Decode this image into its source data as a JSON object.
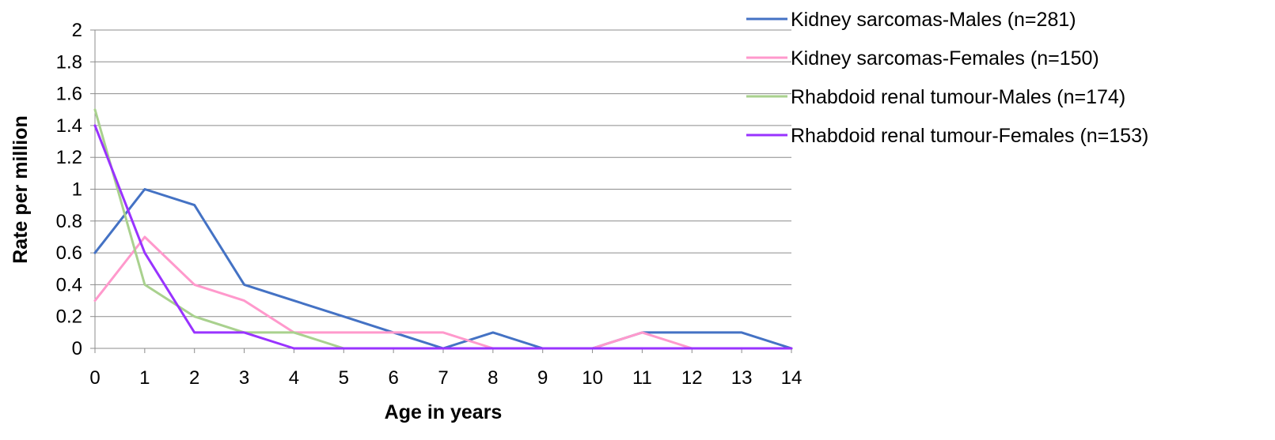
{
  "chart_data": {
    "type": "line",
    "title": "",
    "xlabel": "Age in years",
    "ylabel": "Rate per million",
    "x": [
      0,
      1,
      2,
      3,
      4,
      5,
      6,
      7,
      8,
      9,
      10,
      11,
      12,
      13,
      14
    ],
    "xtick_labels": [
      "0",
      "1",
      "2",
      "3",
      "4",
      "5",
      "6",
      "7",
      "8",
      "9",
      "10",
      "11",
      "12",
      "13",
      "14"
    ],
    "ylim": [
      0,
      2
    ],
    "ytick_labels": [
      "0",
      "0.2",
      "0.4",
      "0.6",
      "0.8",
      "1",
      "1.2",
      "1.4",
      "1.6",
      "1.8",
      "2"
    ],
    "yticks": [
      0,
      0.2,
      0.4,
      0.6,
      0.8,
      1,
      1.2,
      1.4,
      1.6,
      1.8,
      2
    ],
    "grid": true,
    "legend_position": "top-right",
    "series": [
      {
        "name": "Kidney sarcomas-Males (n=281)",
        "color": "#4472C4",
        "values": [
          0.6,
          1.0,
          0.9,
          0.4,
          0.3,
          0.2,
          0.1,
          0.0,
          0.1,
          0.0,
          0.0,
          0.1,
          0.1,
          0.1,
          0.0
        ]
      },
      {
        "name": "Kidney sarcomas-Females (n=150)",
        "color": "#FF99CC",
        "values": [
          0.3,
          0.7,
          0.4,
          0.3,
          0.1,
          0.1,
          0.1,
          0.1,
          0.0,
          0.0,
          0.0,
          0.1,
          0.0,
          0.0,
          0.0
        ]
      },
      {
        "name": "Rhabdoid renal tumour-Males (n=174)",
        "color": "#A9D18E",
        "values": [
          1.5,
          0.4,
          0.2,
          0.1,
          0.1,
          0.0,
          0.0,
          0.0,
          0.0,
          0.0,
          0.0,
          0.0,
          0.0,
          0.0,
          0.0
        ]
      },
      {
        "name": "Rhabdoid renal tumour-Females (n=153)",
        "color": "#9933FF",
        "values": [
          1.4,
          0.6,
          0.1,
          0.1,
          0.0,
          0.0,
          0.0,
          0.0,
          0.0,
          0.0,
          0.0,
          0.0,
          0.0,
          0.0,
          0.0
        ]
      }
    ]
  }
}
